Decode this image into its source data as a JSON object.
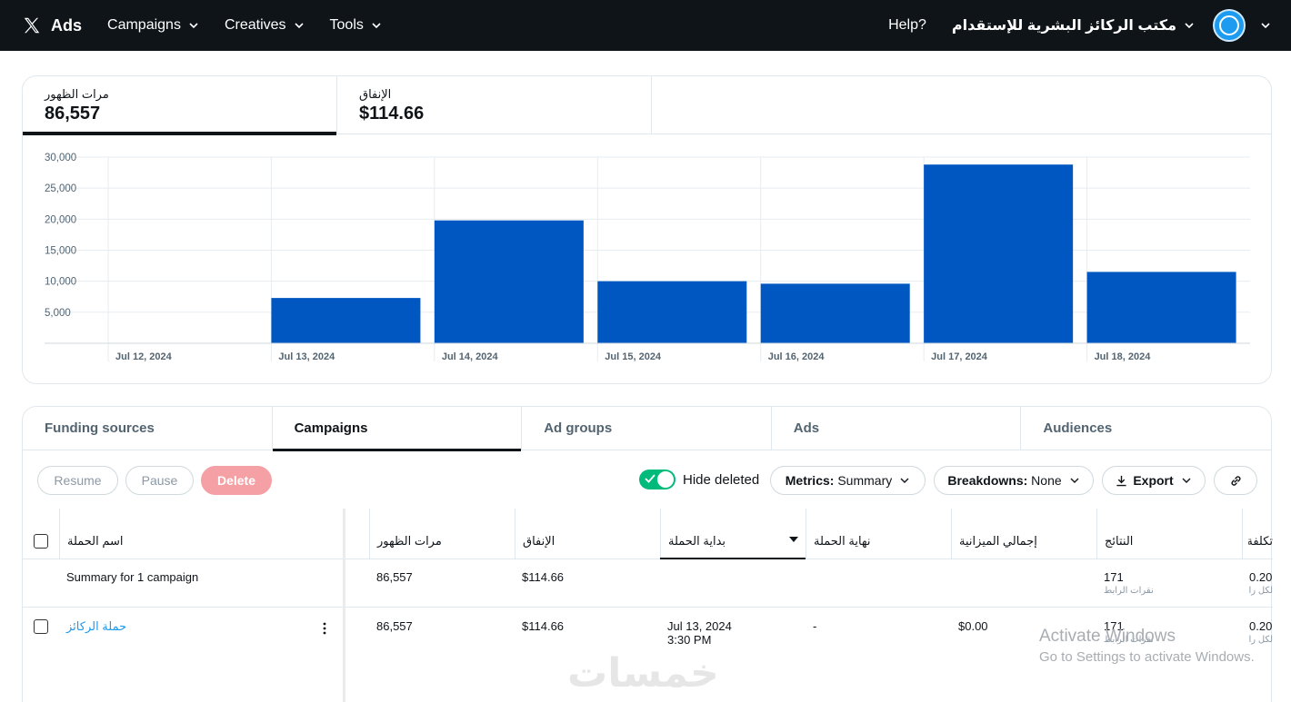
{
  "topbar": {
    "brand": "Ads",
    "nav": [
      {
        "label": "Campaigns"
      },
      {
        "label": "Creatives"
      },
      {
        "label": "Tools"
      }
    ],
    "help": "Help?",
    "account_name": "مكتب الركائز البشرية للإستقدام"
  },
  "metrics": {
    "tabs": [
      {
        "label": "مرات الظهور",
        "value": "86,557"
      },
      {
        "label": "الإنفاق",
        "value": "$114.66"
      }
    ]
  },
  "chart_data": {
    "type": "bar",
    "categories": [
      "Jul 12, 2024",
      "Jul 13, 2024",
      "Jul 14, 2024",
      "Jul 15, 2024",
      "Jul 16, 2024",
      "Jul 17, 2024",
      "Jul 18, 2024"
    ],
    "values": [
      0,
      7300,
      19800,
      10000,
      9600,
      28800,
      11500
    ],
    "yticks": [
      "5,000",
      "10,000",
      "15,000",
      "20,000",
      "25,000",
      "30,000"
    ],
    "ylim": [
      0,
      30000
    ],
    "grid": true,
    "color": "#0057c2"
  },
  "entity_tabs": [
    {
      "label": "Funding sources"
    },
    {
      "label": "Campaigns"
    },
    {
      "label": "Ad groups"
    },
    {
      "label": "Ads"
    },
    {
      "label": "Audiences"
    }
  ],
  "toolbar": {
    "resume": "Resume",
    "pause": "Pause",
    "delete": "Delete",
    "hide_deleted": "Hide deleted",
    "metrics_key": "Metrics:",
    "metrics_val": "Summary",
    "breakdowns_key": "Breakdowns:",
    "breakdowns_val": "None",
    "export": "Export"
  },
  "table": {
    "headers": {
      "name": "اسم الحملة",
      "impressions": "مرات الظهور",
      "spend": "الإنفاق",
      "start": "بداية الحملة",
      "end": "نهاية الحملة",
      "budget": "إجمالي الميزانية",
      "results": "النتائج",
      "cost_cut": "تكلفة النتائج"
    },
    "summary": {
      "name": "Summary for 1 campaign",
      "impressions": "86,557",
      "spend": "$114.66",
      "results": "171",
      "results_sub": "نقرات الرابط",
      "cost": "0.20",
      "cost_sub": "لكل رابط"
    },
    "rows": [
      {
        "name": "حملة الركائز",
        "impressions": "86,557",
        "spend": "$114.66",
        "start_date": "Jul 13, 2024",
        "start_time": "3:30 PM",
        "end": "-",
        "budget": "$0.00",
        "results": "171",
        "results_sub": "نقرات الرابط",
        "cost": "0.20",
        "cost_sub": "لكل رابط"
      }
    ]
  },
  "watermark": {
    "line1": "Activate Windows",
    "line2": "Go to Settings to activate Windows.",
    "site": "خمسات"
  }
}
